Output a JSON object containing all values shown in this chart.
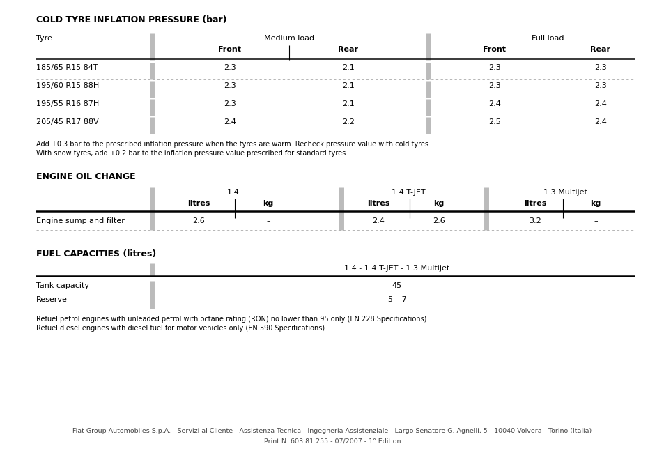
{
  "bg_color": "#FFFFFF",
  "section1_title": "COLD TYRE INFLATION PRESSURE (bar)",
  "tyre_header": "Tyre",
  "medium_load_header": "Medium load",
  "full_load_header": "Full load",
  "front_header": "Front",
  "rear_header": "Rear",
  "tyre_rows": [
    {
      "tyre": "185/65 R15 84T",
      "ml_front": "2.3",
      "ml_rear": "2.1",
      "fl_front": "2.3",
      "fl_rear": "2.3"
    },
    {
      "tyre": "195/60 R15 88H",
      "ml_front": "2.3",
      "ml_rear": "2.1",
      "fl_front": "2.3",
      "fl_rear": "2.3"
    },
    {
      "tyre": "195/55 R16 87H",
      "ml_front": "2.3",
      "ml_rear": "2.1",
      "fl_front": "2.4",
      "fl_rear": "2.4"
    },
    {
      "tyre": "205/45 R17 88V",
      "ml_front": "2.4",
      "ml_rear": "2.2",
      "fl_front": "2.5",
      "fl_rear": "2.4"
    }
  ],
  "tyre_note1": "Add +0.3 bar to the prescribed inflation pressure when the tyres are warm. Recheck pressure value with cold tyres.",
  "tyre_note2": "With snow tyres, add +0.2 bar to the inflation pressure value prescribed for standard tyres.",
  "section2_title": "ENGINE OIL CHANGE",
  "engine_col1_header": "1.4",
  "engine_col2_header": "1.4 T-JET",
  "engine_col3_header": "1.3 Multijet",
  "engine_sub_litres": "litres",
  "engine_sub_kg": "kg",
  "engine_rows": [
    {
      "label": "Engine sump and filter",
      "c1_l": "2.6",
      "c1_k": "–",
      "c2_l": "2.4",
      "c2_k": "2.6",
      "c3_l": "3.2",
      "c3_k": "–"
    }
  ],
  "section3_title": "FUEL CAPACITIES (litres)",
  "fuel_col_header": "1.4 - 1.4 T-JET - 1.3 Multijet",
  "fuel_rows": [
    {
      "label": "Tank capacity",
      "value": "45"
    },
    {
      "label": "Reserve",
      "value": "5 – 7"
    }
  ],
  "fuel_note1": "Refuel petrol engines with unleaded petrol with octane rating (RON) no lower than 95 only (EN 228 Specifications)",
  "fuel_note2": "Refuel diesel engines with diesel fuel for motor vehicles only (EN 590 Specifications)",
  "footer1": "Fiat Group Automobiles S.p.A. - Servizi al Cliente - Assistenza Tecnica - Ingegneria Assistenziale - Largo Senatore G. Agnelli, 5 - 10040 Volvera - Torino (Italia)",
  "footer2": "Print N. 603.81.255 - 07/2007 - 1° Edition"
}
